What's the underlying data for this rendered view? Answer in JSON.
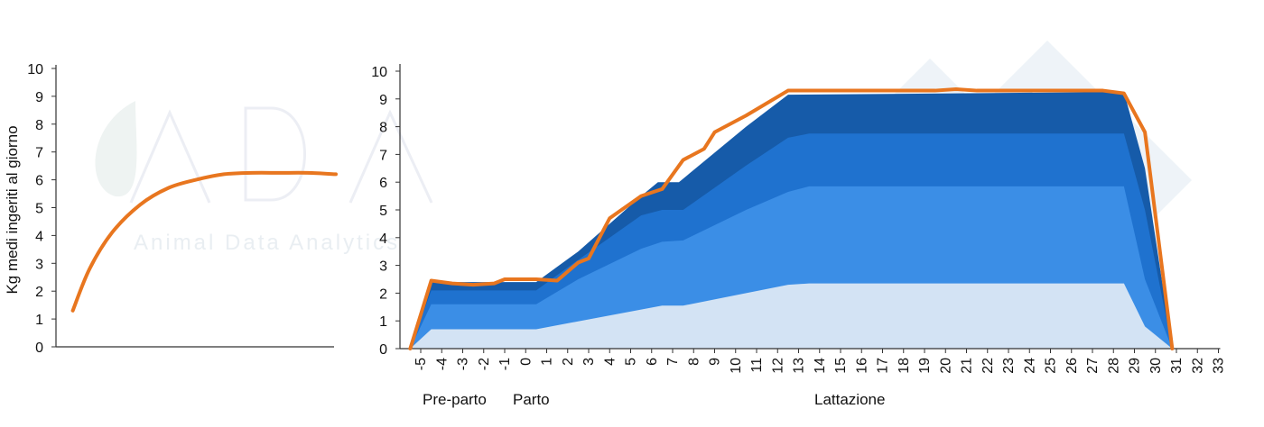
{
  "watermark": {
    "text": "Animal Data Analytics",
    "logo": "ADA"
  },
  "colors": {
    "orange": "#e8761f",
    "band_light": "#d3e3f4",
    "band_mid": "#3b8ee6",
    "band_strong": "#1f72cf",
    "band_dark": "#165ba9",
    "axis": "#333333"
  },
  "chart_data": [
    {
      "type": "line",
      "ylabel": "Kg medi ingeriti al giorno",
      "ylim": [
        0,
        10
      ],
      "yticks": [
        "0",
        "1",
        "2",
        "3",
        "4",
        "5",
        "6",
        "7",
        "8",
        "9",
        "10"
      ],
      "xlim": [
        0,
        10
      ],
      "series": [
        {
          "x": [
            0.6,
            1.2,
            2,
            3,
            4,
            5,
            6,
            7,
            8,
            9,
            10
          ],
          "values": [
            1.3,
            2.8,
            4.1,
            5.1,
            5.7,
            6.0,
            6.2,
            6.25,
            6.25,
            6.25,
            6.2
          ]
        }
      ]
    },
    {
      "type": "area",
      "ylim": [
        0,
        10
      ],
      "yticks": [
        "0",
        "1",
        "2",
        "3",
        "4",
        "5",
        "6",
        "7",
        "8",
        "9",
        "10"
      ],
      "categories": [
        "-5",
        "-4",
        "-3",
        "-2",
        "-1",
        "0",
        "1",
        "2",
        "3",
        "4",
        "5",
        "6",
        "7",
        "8",
        "9",
        "10",
        "11",
        "12",
        "13",
        "14",
        "15",
        "16",
        "17",
        "18",
        "19",
        "20",
        "21",
        "22",
        "23",
        "24",
        "25",
        "26",
        "27",
        "28",
        "29",
        "30",
        "31",
        "32",
        "33"
      ],
      "phases": [
        {
          "label": "Pre-parto"
        },
        {
          "label": "Parto"
        },
        {
          "label": "Lattazione"
        }
      ],
      "bands": [
        {
          "color_key": "band_dark",
          "points": [
            [
              -5.5,
              0
            ],
            [
              -4.5,
              2.4
            ],
            [
              0.5,
              2.4
            ],
            [
              2.5,
              3.5
            ],
            [
              5.5,
              5.5
            ],
            [
              6.3,
              6.0
            ],
            [
              7.3,
              6.0
            ],
            [
              10.5,
              8.0
            ],
            [
              12.5,
              9.15
            ],
            [
              28.5,
              9.25
            ],
            [
              29.5,
              6.5
            ],
            [
              30.8,
              0
            ]
          ]
        },
        {
          "color_key": "band_strong",
          "points": [
            [
              -5.5,
              0
            ],
            [
              -4.5,
              2.1
            ],
            [
              0.5,
              2.1
            ],
            [
              2.5,
              3.2
            ],
            [
              5.5,
              4.8
            ],
            [
              6.5,
              5.0
            ],
            [
              7.5,
              5.0
            ],
            [
              10.5,
              6.6
            ],
            [
              12.5,
              7.6
            ],
            [
              13.5,
              7.75
            ],
            [
              28.5,
              7.75
            ],
            [
              29.5,
              5.0
            ],
            [
              30.8,
              0
            ]
          ]
        },
        {
          "color_key": "band_mid",
          "points": [
            [
              -5.5,
              0
            ],
            [
              -4.5,
              1.6
            ],
            [
              0.5,
              1.6
            ],
            [
              2.5,
              2.5
            ],
            [
              5.5,
              3.6
            ],
            [
              6.5,
              3.85
            ],
            [
              7.5,
              3.9
            ],
            [
              10.5,
              5.0
            ],
            [
              12.5,
              5.65
            ],
            [
              13.5,
              5.85
            ],
            [
              28.5,
              5.85
            ],
            [
              29.5,
              2.5
            ],
            [
              30.8,
              0
            ]
          ]
        },
        {
          "color_key": "band_light",
          "points": [
            [
              -5.5,
              0
            ],
            [
              -4.5,
              0.7
            ],
            [
              0.5,
              0.7
            ],
            [
              6.5,
              1.55
            ],
            [
              7.5,
              1.55
            ],
            [
              10.5,
              2.0
            ],
            [
              12.5,
              2.3
            ],
            [
              13.5,
              2.35
            ],
            [
              28.5,
              2.35
            ],
            [
              29.5,
              0.8
            ],
            [
              30.8,
              0
            ]
          ]
        }
      ],
      "series": [
        {
          "points": [
            [
              -5.5,
              0
            ],
            [
              -4.5,
              2.45
            ],
            [
              -3.5,
              2.35
            ],
            [
              -2.5,
              2.3
            ],
            [
              -1.5,
              2.35
            ],
            [
              -1,
              2.5
            ],
            [
              0.5,
              2.5
            ],
            [
              1.5,
              2.45
            ],
            [
              2.5,
              3.1
            ],
            [
              3,
              3.25
            ],
            [
              4,
              4.7
            ],
            [
              5.5,
              5.5
            ],
            [
              6.5,
              5.75
            ],
            [
              7.5,
              6.8
            ],
            [
              8.5,
              7.2
            ],
            [
              9,
              7.8
            ],
            [
              10.5,
              8.4
            ],
            [
              12.5,
              9.3
            ],
            [
              19.5,
              9.3
            ],
            [
              20.5,
              9.35
            ],
            [
              21.5,
              9.3
            ],
            [
              27.5,
              9.3
            ],
            [
              28.5,
              9.2
            ],
            [
              29.5,
              7.8
            ],
            [
              30.8,
              0
            ]
          ]
        }
      ]
    }
  ]
}
